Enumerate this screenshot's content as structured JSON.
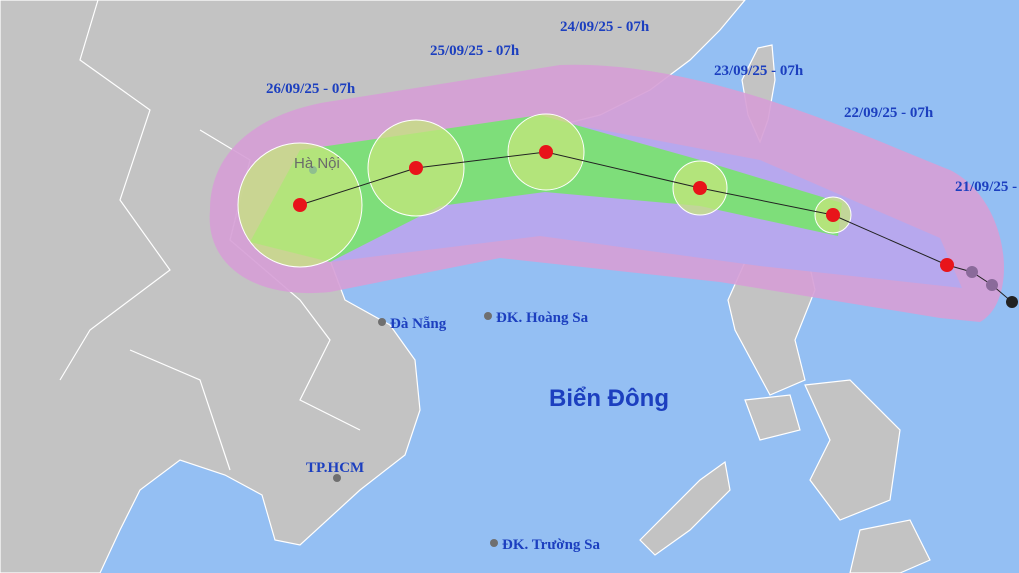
{
  "track_labels": [
    "24/09/25 - 07h",
    "25/09/25 - 07h",
    "23/09/25 - 07h",
    "26/09/25 - 07h",
    "22/09/25 - 07h",
    "21/09/25 -"
  ],
  "places": [
    "Hà Nội",
    "Đà Nẵng",
    "ĐK. Hoàng Sa",
    "TP.HCM",
    "ĐK. Trường Sa"
  ],
  "sea_label": "Biển Đông"
}
